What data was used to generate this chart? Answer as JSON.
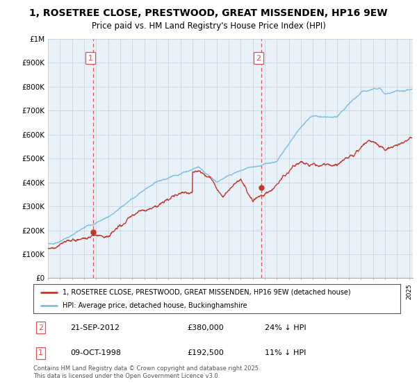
{
  "title": "1, ROSETREE CLOSE, PRESTWOOD, GREAT MISSENDEN, HP16 9EW",
  "subtitle": "Price paid vs. HM Land Registry's House Price Index (HPI)",
  "ylim": [
    0,
    1000000
  ],
  "yticks": [
    0,
    100000,
    200000,
    300000,
    400000,
    500000,
    600000,
    700000,
    800000,
    900000,
    1000000
  ],
  "ytick_labels": [
    "£0",
    "£100K",
    "£200K",
    "£300K",
    "£400K",
    "£500K",
    "£600K",
    "£700K",
    "£800K",
    "£900K",
    "£1M"
  ],
  "xlim_start": 1995.0,
  "xlim_end": 2025.3,
  "sale1_date": 1998.78,
  "sale1_price": 192500,
  "sale2_date": 2012.72,
  "sale2_price": 380000,
  "hpi_color": "#7bbde0",
  "price_color": "#c0392b",
  "vline_color": "#e05050",
  "legend_label_price": "1, ROSETREE CLOSE, PRESTWOOD, GREAT MISSENDEN, HP16 9EW (detached house)",
  "legend_label_hpi": "HPI: Average price, detached house, Buckinghamshire",
  "table_row1": [
    "1",
    "09-OCT-1998",
    "£192,500",
    "11% ↓ HPI"
  ],
  "table_row2": [
    "2",
    "21-SEP-2012",
    "£380,000",
    "24% ↓ HPI"
  ],
  "footer": "Contains HM Land Registry data © Crown copyright and database right 2025.\nThis data is licensed under the Open Government Licence v3.0.",
  "background_color": "#ffffff",
  "plot_bg_color": "#e8f0f8",
  "grid_color": "#c8d4e0"
}
